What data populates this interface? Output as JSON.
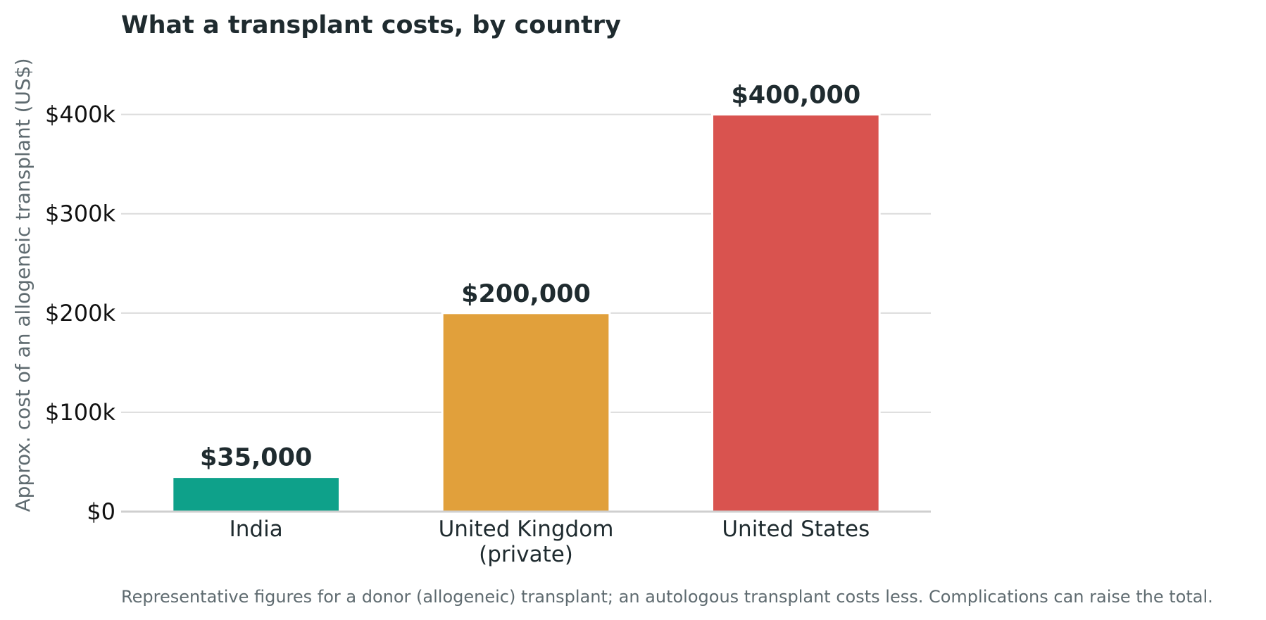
{
  "chart_data": {
    "type": "bar",
    "title": "What a transplant costs, by country",
    "ylabel": "Approx. cost of an allogeneic transplant (US$)",
    "xlabel": "",
    "categories": [
      "India",
      "United Kingdom\n(private)",
      "United States"
    ],
    "values": [
      35000,
      200000,
      400000
    ],
    "data_labels": [
      "$35,000",
      "$200,000",
      "$400,000"
    ],
    "bar_colors": [
      "#0ea18a",
      "#e1a03b",
      "#d9534f"
    ],
    "yticks": [
      0,
      100000,
      200000,
      300000,
      400000
    ],
    "ytick_labels": [
      "$0",
      "$100k",
      "$200k",
      "$300k",
      "$400k"
    ],
    "ylim": [
      0,
      460000
    ],
    "grid": "horizontal",
    "footnote": "Representative figures for a donor (allogeneic) transplant; an autologous transplant costs less. Complications can raise the total."
  }
}
